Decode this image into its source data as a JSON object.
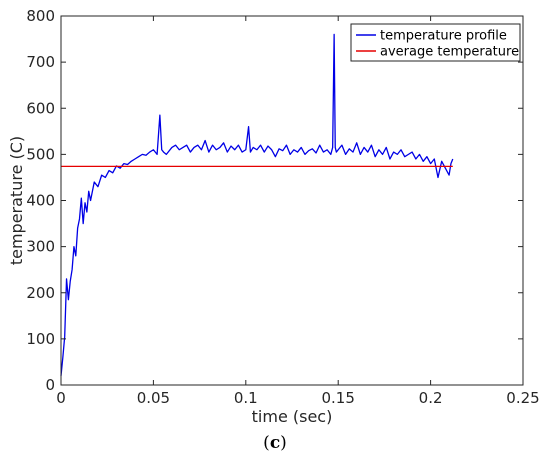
{
  "figure": {
    "caption_open": "(",
    "caption_letter": "c",
    "caption_close": ")"
  },
  "chart_data": {
    "type": "line",
    "title": "",
    "xlabel": "time (sec)",
    "ylabel": "temperature (C)",
    "xlim": [
      0,
      0.25
    ],
    "ylim": [
      0,
      800
    ],
    "xticks": [
      0,
      0.05,
      0.1,
      0.15,
      0.2,
      0.25
    ],
    "xtick_labels": [
      "0",
      "0.05",
      "0.1",
      "0.15",
      "0.2",
      "0.25"
    ],
    "yticks": [
      0,
      100,
      200,
      300,
      400,
      500,
      600,
      700,
      800
    ],
    "ytick_labels": [
      "0",
      "100",
      "200",
      "300",
      "400",
      "500",
      "600",
      "700",
      "800"
    ],
    "grid": false,
    "legend_position": "top-right",
    "series": [
      {
        "name": "temperature profile",
        "color": "#0000e6",
        "x": [
          0,
          0.001,
          0.002,
          0.003,
          0.004,
          0.005,
          0.006,
          0.007,
          0.008,
          0.009,
          0.01,
          0.011,
          0.012,
          0.013,
          0.014,
          0.015,
          0.016,
          0.018,
          0.02,
          0.022,
          0.024,
          0.026,
          0.028,
          0.03,
          0.032,
          0.034,
          0.036,
          0.038,
          0.04,
          0.042,
          0.044,
          0.046,
          0.048,
          0.05,
          0.052,
          0.0535,
          0.0545,
          0.0555,
          0.057,
          0.06,
          0.062,
          0.064,
          0.066,
          0.068,
          0.07,
          0.072,
          0.074,
          0.076,
          0.078,
          0.08,
          0.082,
          0.084,
          0.086,
          0.088,
          0.09,
          0.092,
          0.094,
          0.096,
          0.098,
          0.1,
          0.1015,
          0.1025,
          0.104,
          0.106,
          0.108,
          0.11,
          0.112,
          0.114,
          0.116,
          0.118,
          0.12,
          0.122,
          0.124,
          0.126,
          0.128,
          0.13,
          0.132,
          0.134,
          0.136,
          0.138,
          0.14,
          0.142,
          0.144,
          0.146,
          0.147,
          0.1478,
          0.1484,
          0.149,
          0.15,
          0.152,
          0.154,
          0.156,
          0.158,
          0.16,
          0.162,
          0.164,
          0.166,
          0.168,
          0.17,
          0.172,
          0.174,
          0.176,
          0.178,
          0.18,
          0.182,
          0.184,
          0.186,
          0.188,
          0.19,
          0.192,
          0.194,
          0.196,
          0.198,
          0.2,
          0.202,
          0.204,
          0.206,
          0.208,
          0.21,
          0.211,
          0.212
        ],
        "y": [
          20,
          60,
          105,
          230,
          185,
          225,
          250,
          300,
          280,
          340,
          360,
          405,
          350,
          395,
          375,
          420,
          400,
          440,
          430,
          455,
          450,
          465,
          460,
          475,
          470,
          480,
          478,
          485,
          490,
          495,
          500,
          498,
          505,
          510,
          500,
          585,
          510,
          505,
          500,
          515,
          520,
          510,
          515,
          520,
          505,
          515,
          520,
          510,
          530,
          505,
          520,
          510,
          515,
          525,
          505,
          518,
          510,
          520,
          505,
          510,
          560,
          505,
          515,
          510,
          520,
          505,
          518,
          510,
          495,
          512,
          508,
          520,
          500,
          510,
          505,
          515,
          500,
          508,
          512,
          503,
          520,
          505,
          510,
          500,
          515,
          760,
          515,
          505,
          510,
          520,
          500,
          512,
          505,
          525,
          500,
          515,
          505,
          520,
          495,
          510,
          500,
          515,
          490,
          505,
          500,
          510,
          495,
          500,
          505,
          490,
          500,
          485,
          495,
          480,
          490,
          450,
          485,
          470,
          455,
          480,
          490
        ]
      },
      {
        "name": "average temperature",
        "color": "#e60000",
        "x": [
          0,
          0.212
        ],
        "y": [
          474,
          474
        ]
      }
    ]
  }
}
